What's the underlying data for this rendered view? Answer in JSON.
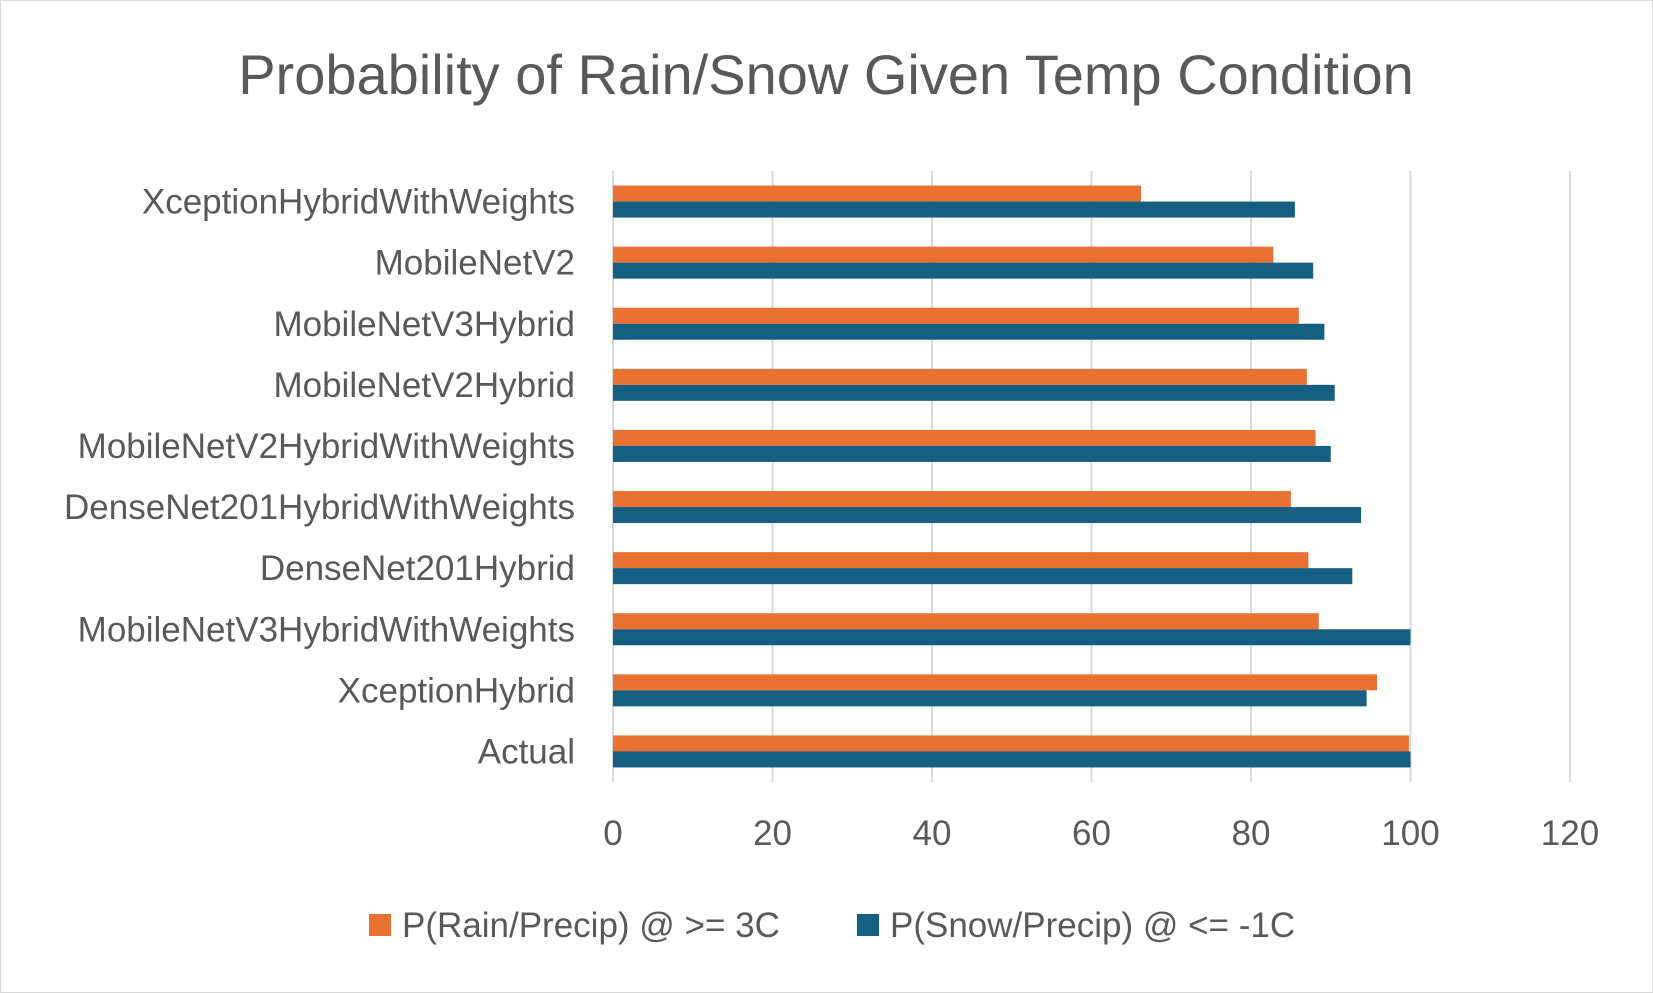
{
  "chart_data": {
    "type": "bar",
    "orientation": "horizontal",
    "title": "Probability of Rain/Snow Given Temp Condition",
    "xlabel": "",
    "ylabel": "",
    "xlim": [
      0,
      120
    ],
    "xticks": [
      0,
      20,
      40,
      60,
      80,
      100,
      120
    ],
    "grid": "vertical",
    "legend_position": "bottom",
    "categories": [
      "XceptionHybridWithWeights",
      "MobileNetV2",
      "MobileNetV3Hybrid",
      "MobileNetV2Hybrid",
      "MobileNetV2HybridWithWeights",
      "DenseNet201HybridWithWeights",
      "DenseNet201Hybrid",
      "MobileNetV3HybridWithWeights",
      "XceptionHybrid",
      "Actual"
    ],
    "series": [
      {
        "name": "P(Rain/Precip) @ >= 3C",
        "color": "#E97132",
        "values": [
          66.2,
          82.8,
          86.0,
          87.0,
          88.1,
          85.0,
          87.2,
          88.5,
          95.8,
          99.8
        ]
      },
      {
        "name": "P(Snow/Precip) @ <= -1C",
        "color": "#156082",
        "values": [
          85.5,
          87.8,
          89.2,
          90.5,
          90.0,
          93.8,
          92.7,
          100.0,
          94.5,
          100.0
        ]
      }
    ]
  }
}
